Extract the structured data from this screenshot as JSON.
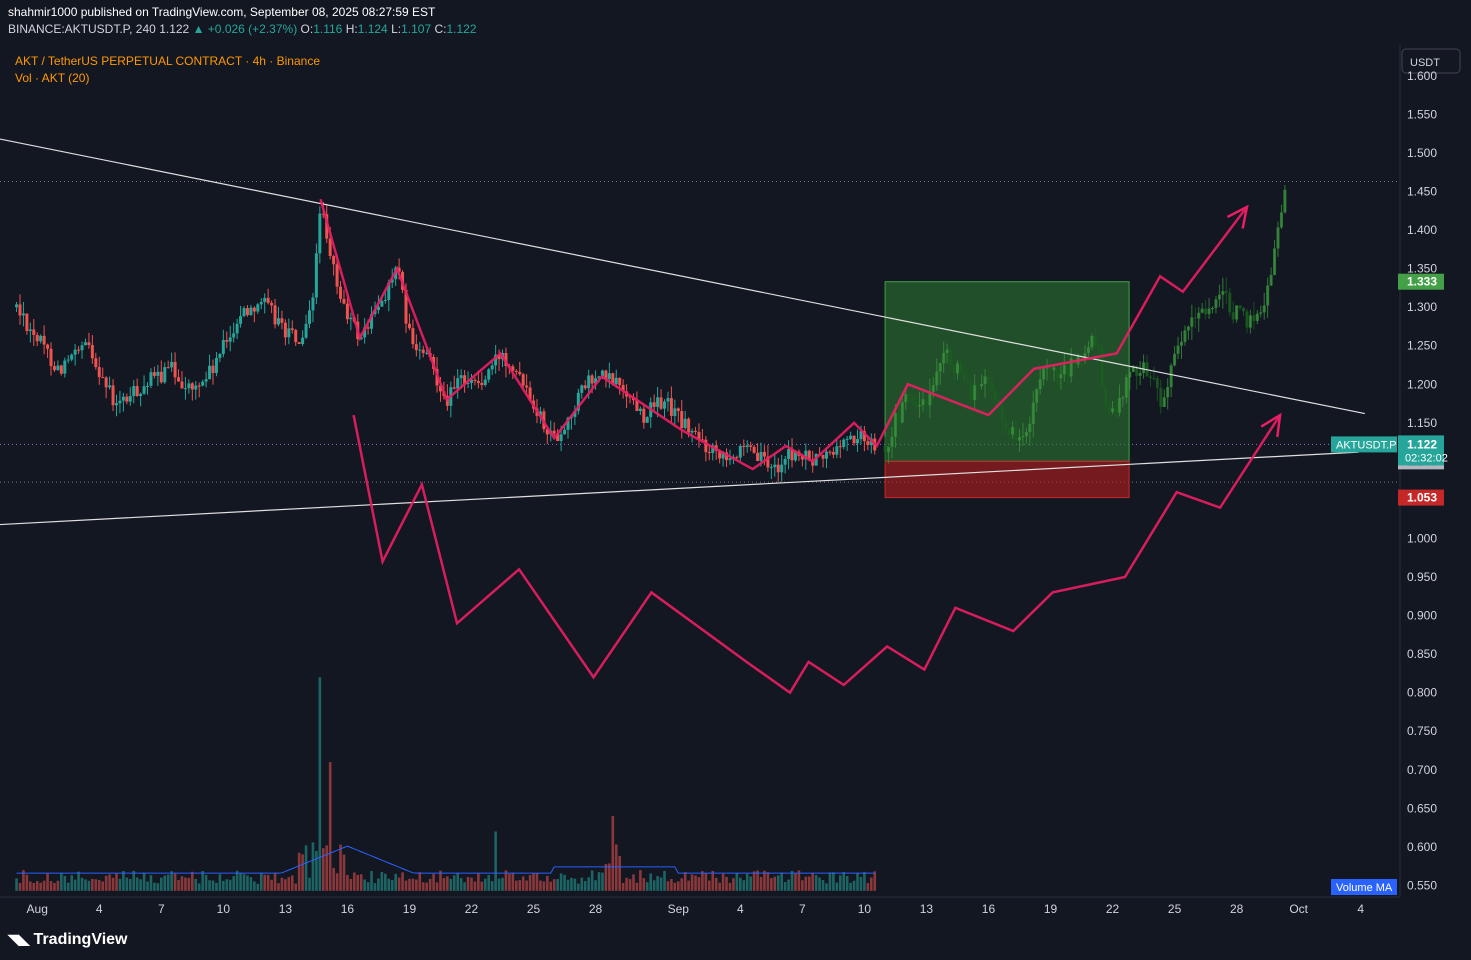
{
  "header": {
    "publisher_line": "shahmir1000 published on TradingView.com, September 08, 2025 08:27:59 EST",
    "symbol_line": "BINANCE:AKTUSDT.P, 240",
    "last": "1.122",
    "change": "+0.026 (+2.37%)",
    "o_label": "O:",
    "o_value": "1.116",
    "h_label": "H:",
    "h_value": "1.124",
    "l_label": "L:",
    "l_value": "1.107",
    "c_label": "C:",
    "c_value": "1.122"
  },
  "legend": {
    "title": "AKT / TetherUS PERPETUAL CONTRACT · 4h · Binance",
    "volume": "Vol · AKT (20)"
  },
  "branding": {
    "logo_text": "TradingView"
  },
  "colors": {
    "background": "#131722",
    "up": "#26a69a",
    "down": "#ef5350",
    "projection": "#e91e63",
    "target_zone": "#2e7d32",
    "stop_zone": "#b71c1c",
    "volume_ma": "#2962ff"
  },
  "chart_data": {
    "type": "candlestick",
    "currency_label": "USDT",
    "y_ticks": [
      "1.600",
      "1.550",
      "1.500",
      "1.450",
      "1.400",
      "1.350",
      "1.300",
      "1.250",
      "1.200",
      "1.150",
      "1.100",
      "1.050",
      "1.000",
      "0.950",
      "0.900",
      "0.850",
      "0.800",
      "0.750",
      "0.700",
      "0.650",
      "0.600",
      "0.550"
    ],
    "ylim": [
      0.535,
      1.64
    ],
    "x_ticks": [
      {
        "day": 1,
        "label": "Aug"
      },
      {
        "day": 4,
        "label": "4"
      },
      {
        "day": 7,
        "label": "7"
      },
      {
        "day": 10,
        "label": "10"
      },
      {
        "day": 13,
        "label": "13"
      },
      {
        "day": 16,
        "label": "16"
      },
      {
        "day": 19,
        "label": "19"
      },
      {
        "day": 22,
        "label": "22"
      },
      {
        "day": 25,
        "label": "25"
      },
      {
        "day": 28,
        "label": "28"
      },
      {
        "day": 32,
        "label": "Sep"
      },
      {
        "day": 35,
        "label": "4"
      },
      {
        "day": 38,
        "label": "7"
      },
      {
        "day": 41,
        "label": "10"
      },
      {
        "day": 44,
        "label": "13"
      },
      {
        "day": 47,
        "label": "16"
      },
      {
        "day": 50,
        "label": "19"
      },
      {
        "day": 53,
        "label": "22"
      },
      {
        "day": 56,
        "label": "25"
      },
      {
        "day": 59,
        "label": "28"
      },
      {
        "day": 62,
        "label": "Oct"
      },
      {
        "day": 65,
        "label": "4"
      }
    ],
    "xlim": [
      -0.8,
      66.9
    ],
    "price_anchors": [
      [
        0,
        1.3
      ],
      [
        2,
        1.22
      ],
      [
        3.5,
        1.25
      ],
      [
        4.8,
        1.17
      ],
      [
        6.2,
        1.2
      ],
      [
        7.5,
        1.22
      ],
      [
        8.5,
        1.19
      ],
      [
        9.5,
        1.22
      ],
      [
        10.8,
        1.29
      ],
      [
        11.8,
        1.31
      ],
      [
        13.0,
        1.27
      ],
      [
        13.8,
        1.25
      ],
      [
        14.3,
        1.3
      ],
      [
        14.7,
        1.44
      ],
      [
        15.0,
        1.38
      ],
      [
        15.8,
        1.3
      ],
      [
        16.6,
        1.26
      ],
      [
        17.5,
        1.3
      ],
      [
        18.4,
        1.35
      ],
      [
        19.1,
        1.25
      ],
      [
        20.0,
        1.23
      ],
      [
        20.8,
        1.18
      ],
      [
        21.6,
        1.21
      ],
      [
        22.5,
        1.2
      ],
      [
        23.4,
        1.24
      ],
      [
        24.3,
        1.22
      ],
      [
        25.3,
        1.16
      ],
      [
        26.0,
        1.13
      ],
      [
        26.6,
        1.15
      ],
      [
        27.5,
        1.2
      ],
      [
        28.3,
        1.21
      ],
      [
        29.2,
        1.2
      ],
      [
        30.3,
        1.16
      ],
      [
        31.3,
        1.18
      ],
      [
        32.2,
        1.15
      ],
      [
        33.3,
        1.12
      ],
      [
        34.6,
        1.11
      ],
      [
        35.6,
        1.11
      ],
      [
        36.6,
        1.09
      ],
      [
        37.5,
        1.11
      ],
      [
        38.5,
        1.1
      ],
      [
        39.4,
        1.11
      ],
      [
        40.2,
        1.13
      ],
      [
        41.0,
        1.13
      ],
      [
        41.6,
        1.122
      ]
    ],
    "ghost_anchors": [
      [
        42.0,
        1.12
      ],
      [
        43.0,
        1.18
      ],
      [
        44.0,
        1.17
      ],
      [
        45.0,
        1.24
      ],
      [
        46.0,
        1.19
      ],
      [
        47.0,
        1.2
      ],
      [
        48.0,
        1.14
      ],
      [
        48.8,
        1.13
      ],
      [
        49.6,
        1.21
      ],
      [
        50.6,
        1.21
      ],
      [
        51.6,
        1.24
      ],
      [
        52.3,
        1.26
      ],
      [
        52.7,
        1.15
      ],
      [
        53.6,
        1.2
      ],
      [
        54.4,
        1.23
      ],
      [
        55.4,
        1.18
      ],
      [
        56.4,
        1.26
      ],
      [
        57.4,
        1.3
      ],
      [
        58.4,
        1.31
      ],
      [
        59.4,
        1.28
      ],
      [
        60.3,
        1.3
      ],
      [
        61.0,
        1.4
      ],
      [
        61.4,
        1.46
      ]
    ],
    "volume_peaks": [
      [
        14.7,
        0.82
      ],
      [
        15.2,
        0.71
      ],
      [
        28.9,
        0.64
      ],
      [
        23.1,
        0.62
      ]
    ],
    "annotations": {
      "last_price": {
        "label": "AKTUSDT.P",
        "value": "1.122",
        "countdown": "02:32:02"
      },
      "target": {
        "value": "1.333"
      },
      "entry": {
        "value": "1.100"
      },
      "stop": {
        "value": "1.053"
      },
      "volume_ma_label": "Volume MA",
      "long_position": {
        "x0": 42.0,
        "x1": 53.8,
        "entry": 1.1,
        "target": 1.333,
        "stop": 1.053
      }
    },
    "trendlines": [
      {
        "from": [
          -0.8,
          1.518
        ],
        "to": [
          65.2,
          1.162
        ]
      },
      {
        "from": [
          -0.8,
          1.018
        ],
        "to": [
          64.9,
          1.112
        ]
      }
    ],
    "zigzag_upper": [
      [
        14.7,
        1.44
      ],
      [
        16.6,
        1.26
      ],
      [
        18.4,
        1.35
      ],
      [
        20.8,
        1.18
      ],
      [
        23.4,
        1.24
      ],
      [
        26.0,
        1.13
      ],
      [
        28.3,
        1.21
      ],
      [
        32.2,
        1.14
      ],
      [
        35.6,
        1.09
      ],
      [
        37.2,
        1.12
      ],
      [
        38.5,
        1.1
      ],
      [
        40.5,
        1.15
      ],
      [
        41.6,
        1.12
      ],
      [
        43.1,
        1.2
      ],
      [
        47.0,
        1.16
      ],
      [
        49.2,
        1.22
      ],
      [
        53.2,
        1.24
      ],
      [
        55.3,
        1.34
      ],
      [
        56.4,
        1.32
      ],
      [
        59.5,
        1.43
      ]
    ],
    "zigzag_upper_arrow": [
      59.5,
      1.43
    ],
    "zigzag_lower": [
      [
        16.3,
        1.16
      ],
      [
        17.7,
        0.97
      ],
      [
        19.6,
        1.07
      ],
      [
        21.3,
        0.89
      ],
      [
        24.3,
        0.96
      ],
      [
        27.9,
        0.82
      ],
      [
        30.7,
        0.93
      ],
      [
        35.3,
        0.84
      ],
      [
        37.4,
        0.8
      ],
      [
        38.3,
        0.84
      ],
      [
        40.0,
        0.81
      ],
      [
        42.1,
        0.86
      ],
      [
        43.9,
        0.83
      ],
      [
        45.4,
        0.91
      ],
      [
        48.2,
        0.88
      ],
      [
        50.1,
        0.93
      ],
      [
        53.6,
        0.95
      ],
      [
        56.1,
        1.06
      ],
      [
        58.2,
        1.04
      ],
      [
        61.1,
        1.16
      ]
    ],
    "zigzag_lower_arrow": [
      61.1,
      1.16
    ]
  }
}
